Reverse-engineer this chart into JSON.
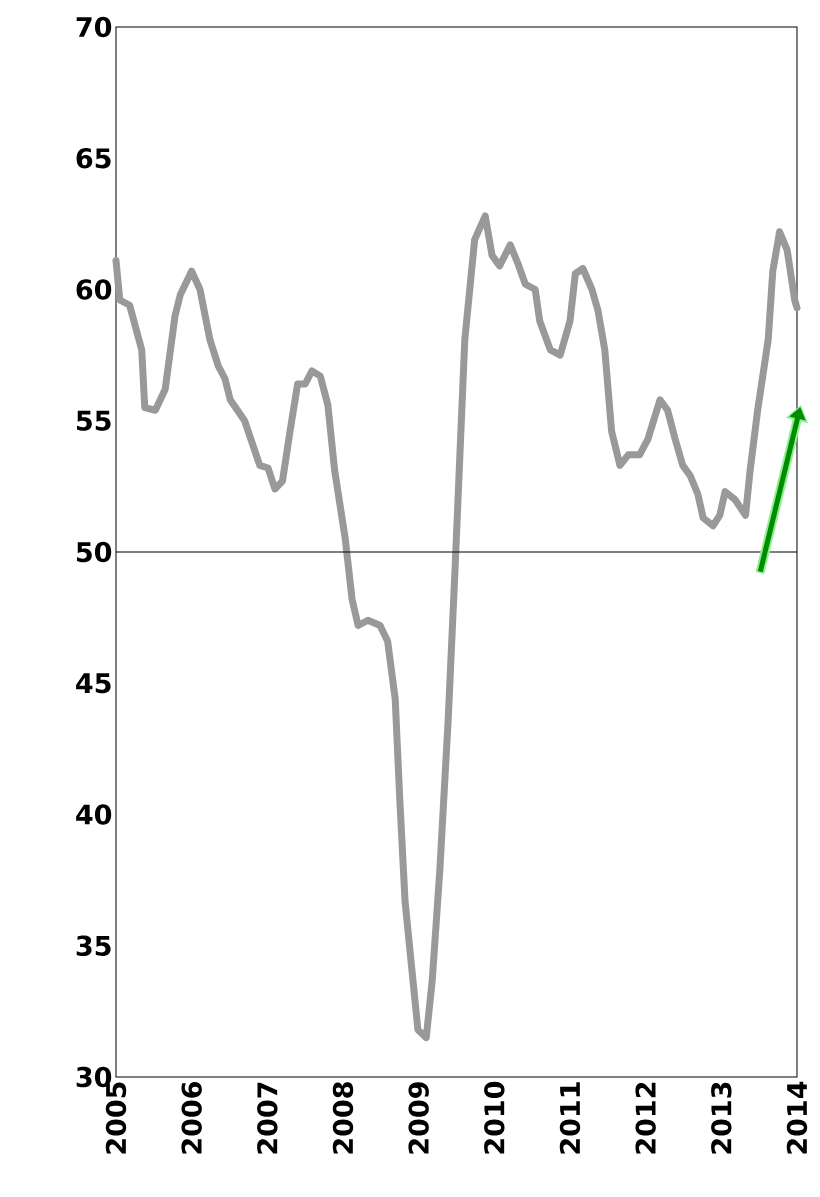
{
  "chart_data": {
    "type": "line",
    "x": [
      2005.0,
      2005.05,
      2005.18,
      2005.34,
      2005.38,
      2005.52,
      2005.65,
      2005.78,
      2005.85,
      2006.0,
      2006.11,
      2006.24,
      2006.35,
      2006.44,
      2006.51,
      2006.7,
      2006.9,
      2007.01,
      2007.1,
      2007.2,
      2007.3,
      2007.4,
      2007.5,
      2007.59,
      2007.7,
      2007.8,
      2007.89,
      2008.03,
      2008.12,
      2008.2,
      2008.33,
      2008.49,
      2008.59,
      2008.69,
      2008.75,
      2008.82,
      2008.91,
      2008.99,
      2009.1,
      2009.18,
      2009.28,
      2009.39,
      2009.48,
      2009.61,
      2009.74,
      2009.88,
      2009.97,
      2010.07,
      2010.21,
      2010.31,
      2010.41,
      2010.54,
      2010.6,
      2010.74,
      2010.87,
      2011.0,
      2011.07,
      2011.17,
      2011.29,
      2011.37,
      2011.46,
      2011.55,
      2011.66,
      2011.77,
      2011.92,
      2012.03,
      2012.19,
      2012.29,
      2012.39,
      2012.49,
      2012.59,
      2012.69,
      2012.76,
      2012.89,
      2012.98,
      2013.05,
      2013.18,
      2013.32,
      2013.38,
      2013.48,
      2013.62,
      2013.68,
      2013.77,
      2013.87,
      2013.97,
      2014.0
    ],
    "series": [
      {
        "color": "#999999",
        "values": [
          61.1,
          59.6,
          59.4,
          57.7,
          55.5,
          55.4,
          56.2,
          59.0,
          59.8,
          60.7,
          60.0,
          58.1,
          57.1,
          56.6,
          55.8,
          55.0,
          53.3,
          53.2,
          52.4,
          52.7,
          54.6,
          56.4,
          56.4,
          56.9,
          56.7,
          55.6,
          53.1,
          50.5,
          48.2,
          47.2,
          47.4,
          47.2,
          46.6,
          44.4,
          40.6,
          36.7,
          34.1,
          31.8,
          31.5,
          33.7,
          37.9,
          43.6,
          49.3,
          58.1,
          61.9,
          62.8,
          61.3,
          60.9,
          61.7,
          61.0,
          60.2,
          60.0,
          58.8,
          57.7,
          57.5,
          58.8,
          60.6,
          60.8,
          60.0,
          59.2,
          57.7,
          54.6,
          53.3,
          53.7,
          53.7,
          54.3,
          55.8,
          55.4,
          54.3,
          53.3,
          52.9,
          52.2,
          51.3,
          51.0,
          51.4,
          52.3,
          52.0,
          51.4,
          53.1,
          55.4,
          58.1,
          60.7,
          62.2,
          61.5,
          59.6,
          59.3
        ]
      }
    ],
    "xlim": [
      2005,
      2014
    ],
    "xticks": [
      2005,
      2006,
      2007,
      2008,
      2009,
      2010,
      2011,
      2012,
      2013,
      2014
    ],
    "ylim": [
      30,
      70
    ],
    "yticks": [
      30,
      35,
      40,
      45,
      50,
      55,
      60,
      65,
      70
    ],
    "ref_lines": [
      {
        "axis": "y",
        "value": 50,
        "color": "#000000"
      }
    ],
    "line_style": "solid",
    "marker": "none",
    "grid": false
  }
}
